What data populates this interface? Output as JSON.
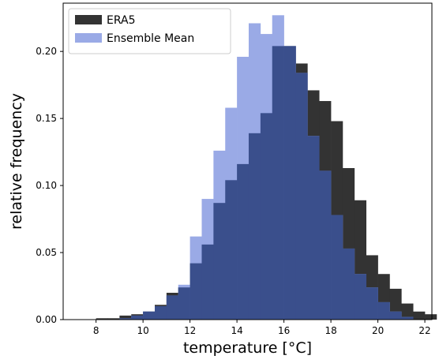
{
  "chart_data": {
    "type": "bar",
    "xlabel": "temperature [°C]",
    "ylabel": "relative frequency",
    "xlim": [
      6.6,
      22.3
    ],
    "ylim": [
      0.0,
      0.236
    ],
    "xticks": [
      8,
      10,
      12,
      14,
      16,
      18,
      20,
      22
    ],
    "yticks": [
      0.0,
      0.05,
      0.1,
      0.15,
      0.2
    ],
    "ytick_labels": [
      "0.00",
      "0.05",
      "0.10",
      "0.15",
      "0.20"
    ],
    "bin_width": 0.5,
    "legend_position": "top-left",
    "series": [
      {
        "name": "ERA5",
        "color": "#333333",
        "bins": [
          [
            8.0,
            0.001
          ],
          [
            8.5,
            0.001
          ],
          [
            9.0,
            0.003
          ],
          [
            9.5,
            0.004
          ],
          [
            10.0,
            0.006
          ],
          [
            10.5,
            0.011
          ],
          [
            11.0,
            0.02
          ],
          [
            11.5,
            0.024
          ],
          [
            12.0,
            0.042
          ],
          [
            12.5,
            0.056
          ],
          [
            13.0,
            0.087
          ],
          [
            13.5,
            0.104
          ],
          [
            14.0,
            0.116
          ],
          [
            14.5,
            0.139
          ],
          [
            15.0,
            0.154
          ],
          [
            15.5,
            0.204
          ],
          [
            16.0,
            0.204
          ],
          [
            16.5,
            0.191
          ],
          [
            17.0,
            0.171
          ],
          [
            17.5,
            0.163
          ],
          [
            18.0,
            0.148
          ],
          [
            18.5,
            0.113
          ],
          [
            19.0,
            0.089
          ],
          [
            19.5,
            0.048
          ],
          [
            20.0,
            0.034
          ],
          [
            20.5,
            0.023
          ],
          [
            21.0,
            0.012
          ],
          [
            21.5,
            0.006
          ],
          [
            22.0,
            0.004
          ]
        ]
      },
      {
        "name": "Ensemble Mean",
        "color": "#9aaae6",
        "bins": [
          [
            9.0,
            0.001
          ],
          [
            9.5,
            0.003
          ],
          [
            10.0,
            0.006
          ],
          [
            10.5,
            0.01
          ],
          [
            11.0,
            0.018
          ],
          [
            11.5,
            0.026
          ],
          [
            12.0,
            0.062
          ],
          [
            12.5,
            0.09
          ],
          [
            13.0,
            0.126
          ],
          [
            13.5,
            0.158
          ],
          [
            14.0,
            0.196
          ],
          [
            14.5,
            0.221
          ],
          [
            15.0,
            0.213
          ],
          [
            15.5,
            0.227
          ],
          [
            16.0,
            0.204
          ],
          [
            16.5,
            0.184
          ],
          [
            17.0,
            0.137
          ],
          [
            17.5,
            0.111
          ],
          [
            18.0,
            0.078
          ],
          [
            18.5,
            0.053
          ],
          [
            19.0,
            0.034
          ],
          [
            19.5,
            0.024
          ],
          [
            20.0,
            0.013
          ],
          [
            20.5,
            0.006
          ],
          [
            21.0,
            0.002
          ]
        ]
      }
    ],
    "overlap_color": "#3a4f8c"
  }
}
